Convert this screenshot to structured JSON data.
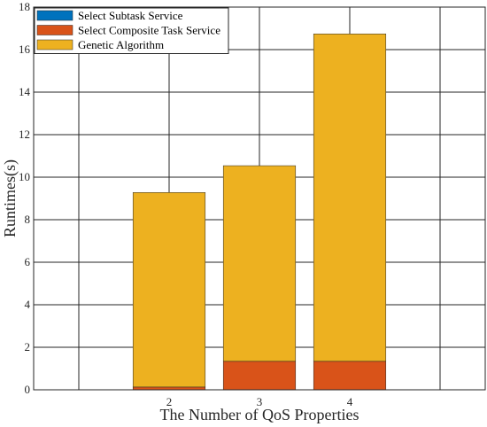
{
  "chart_data": {
    "type": "bar",
    "stacked": true,
    "categories": [
      "2",
      "3",
      "4"
    ],
    "series": [
      {
        "name": "Select Subtask Service",
        "values": [
          0.01,
          0.01,
          0.01
        ],
        "color": "#0072BD"
      },
      {
        "name": "Select Composite Task Service",
        "values": [
          0.12,
          1.33,
          1.33
        ],
        "color": "#D95319"
      },
      {
        "name": "Genetic Algorithm",
        "values": [
          9.15,
          9.2,
          15.4
        ],
        "color": "#EDB120"
      }
    ],
    "xlabel": "The Number of QoS Properties",
    "ylabel": "Runtimes(s)",
    "ylim": [
      0,
      18
    ],
    "yticks": [
      "0",
      "2",
      "4",
      "6",
      "8",
      "10",
      "12",
      "14",
      "16",
      "18"
    ],
    "xlim": [
      0.5,
      5.5
    ],
    "grid": true,
    "legend_position": "top-left"
  }
}
